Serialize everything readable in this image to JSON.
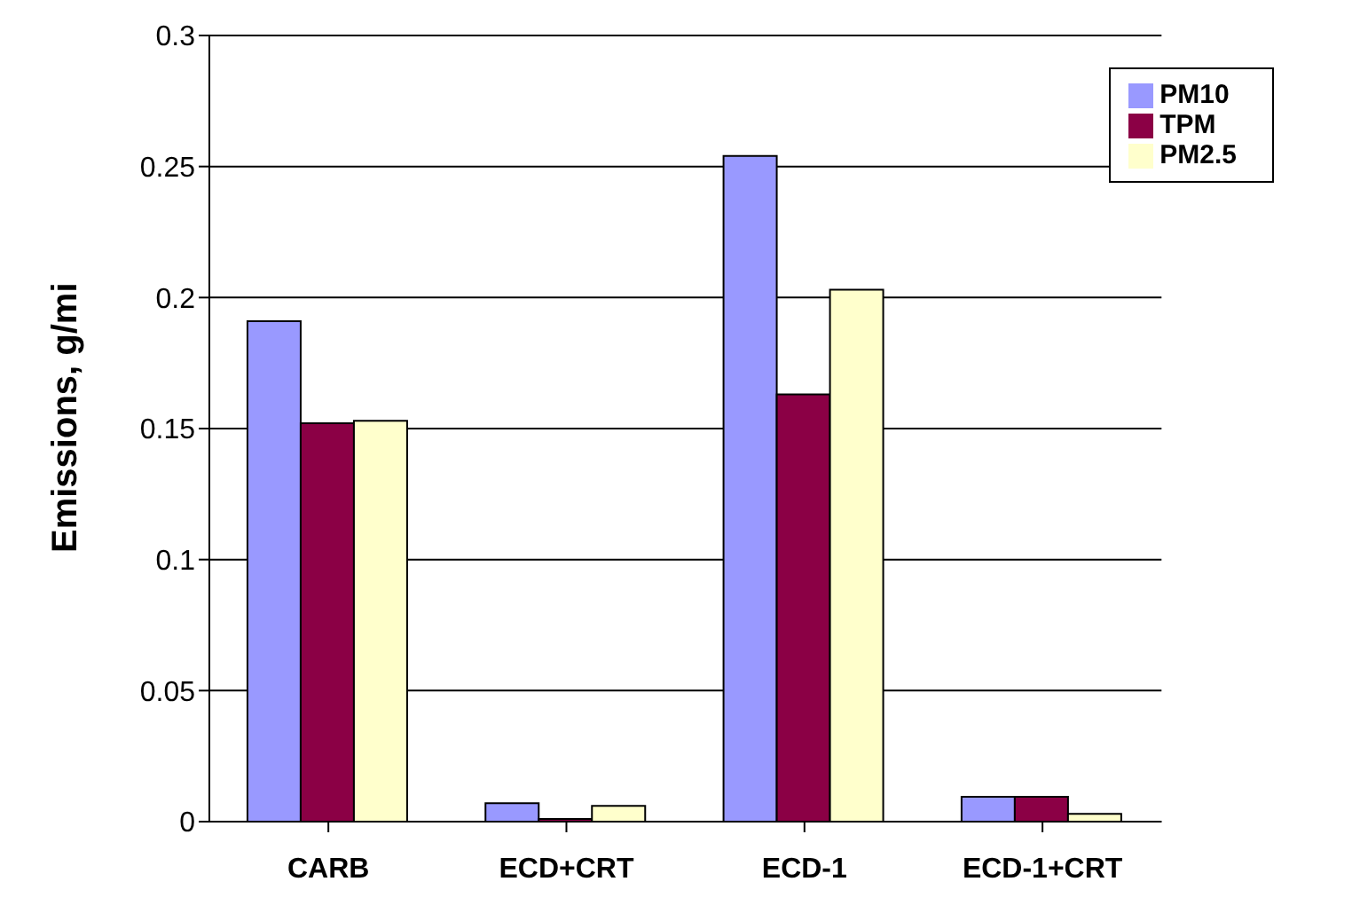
{
  "chart_data": {
    "type": "bar",
    "ylabel": "Emissions, g/mi",
    "categories": [
      "CARB",
      "ECD+CRT",
      "ECD-1",
      "ECD-1+CRT"
    ],
    "series": [
      {
        "name": "PM10",
        "color": "#9999ff",
        "values": [
          0.191,
          0.007,
          0.254,
          0.0095
        ]
      },
      {
        "name": "TPM",
        "color": "#8b0045",
        "values": [
          0.152,
          0.001,
          0.163,
          0.0095
        ]
      },
      {
        "name": "PM2.5",
        "color": "#ffffcc",
        "values": [
          0.153,
          0.006,
          0.203,
          0.003
        ]
      }
    ],
    "ylim": [
      0,
      0.3
    ],
    "yticks": [
      0,
      0.05,
      0.1,
      0.15,
      0.2,
      0.25,
      0.3
    ],
    "grid": "y",
    "legend": "top right"
  }
}
